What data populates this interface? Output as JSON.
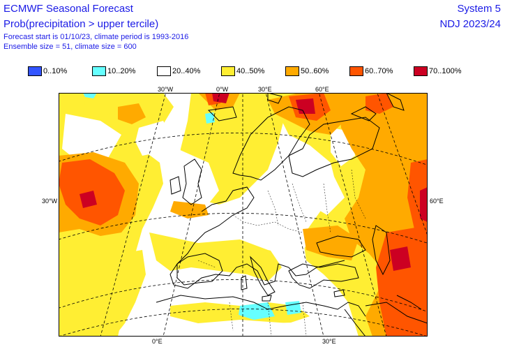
{
  "header": {
    "title": "ECMWF Seasonal Forecast",
    "subtitle": "Prob(precipitation > upper tercile)",
    "info_line1": "Forecast start is 01/10/23, climate period is 1993-2016",
    "info_line2": "Ensemble size = 51, climate size = 600",
    "system": "System 5",
    "season": "NDJ 2023/24"
  },
  "legend": [
    {
      "label": "0..10%",
      "color": "#3355ff"
    },
    {
      "label": "10..20%",
      "color": "#66ffff"
    },
    {
      "label": "20..40%",
      "color": "#ffffff"
    },
    {
      "label": "40..50%",
      "color": "#ffee33"
    },
    {
      "label": "50..60%",
      "color": "#ffaa00"
    },
    {
      "label": "60..70%",
      "color": "#ff5500"
    },
    {
      "label": "70..100%",
      "color": "#cc0022"
    }
  ],
  "map": {
    "axis_labels": {
      "top": [
        "30°W",
        "0°W",
        "30°E",
        "60°E"
      ],
      "left": "30°W",
      "right": "60°E",
      "bottom": [
        "0°E",
        "30°E"
      ]
    },
    "colors": {
      "white": "#ffffff",
      "yellow": "#ffee33",
      "orange": "#ffaa00",
      "red": "#ff5500",
      "dark_red": "#cc0022",
      "cyan": "#66ffff"
    }
  }
}
